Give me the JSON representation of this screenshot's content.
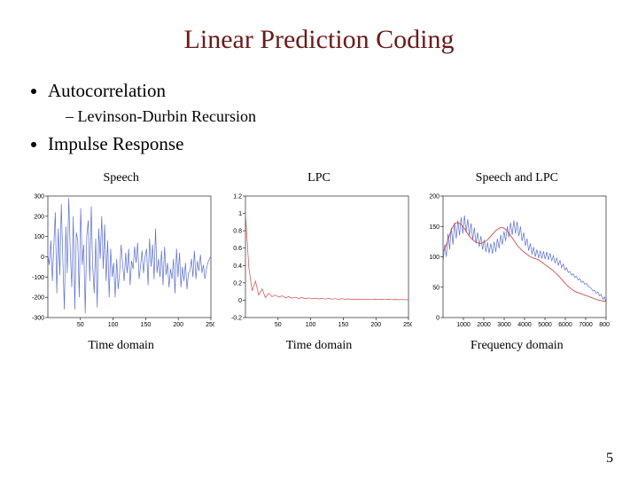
{
  "title": "Linear Prediction Coding",
  "title_color": "#6b1a1a",
  "bullets": {
    "b1": "Autocorrelation",
    "b1_sub1": "Levinson-Durbin Recursion",
    "b2": "Impulse Response"
  },
  "page_number": "5",
  "charts": [
    {
      "top_label": "Speech",
      "bottom_label": "Time domain",
      "type": "line",
      "series": [
        {
          "color": "#5b6fd1",
          "stroke_width": 0.7,
          "y": [
            10,
            -40,
            80,
            -120,
            60,
            220,
            -180,
            140,
            -90,
            260,
            -10,
            -260,
            150,
            -80,
            290,
            30,
            -150,
            200,
            -260,
            120,
            80,
            -200,
            240,
            -40,
            60,
            -280,
            100,
            180,
            -120,
            250,
            -50,
            -180,
            90,
            -250,
            140,
            -10,
            200,
            -60,
            160,
            -120,
            80,
            -200,
            40,
            -100,
            -30,
            -200,
            -10,
            -160,
            -80,
            60,
            -40,
            -120,
            20,
            -80,
            40,
            -140,
            -20,
            -60,
            50,
            -30,
            70,
            -110,
            -40,
            30,
            -80,
            0,
            40,
            -140,
            90,
            -50,
            60,
            -110,
            140,
            -80,
            -10,
            -100,
            30,
            -140,
            50,
            -90,
            -30,
            -150,
            -60,
            -110,
            -10,
            -180,
            40,
            -100,
            20,
            -150,
            -50,
            -120,
            -30,
            -160,
            -80,
            -70,
            -10,
            -100,
            30,
            -110,
            -20,
            -70,
            10,
            -80,
            -40,
            -110,
            -60,
            -30,
            -10,
            0
          ]
        }
      ],
      "x_range": [
        0,
        250
      ],
      "y_range": [
        -300,
        300
      ],
      "y_ticks": [
        -300,
        -200,
        -100,
        0,
        100,
        200,
        300
      ],
      "x_ticks": [
        50,
        100,
        150,
        200,
        250
      ],
      "background": "#ffffff"
    },
    {
      "top_label": "LPC",
      "bottom_label": "Time domain",
      "type": "line",
      "series": [
        {
          "color": "#d24a4a",
          "stroke_width": 0.7,
          "y": [
            1.0,
            0.38,
            0.11,
            0.22,
            0.06,
            0.13,
            0.03,
            0.08,
            0.04,
            0.06,
            0.035,
            0.05,
            0.028,
            0.04,
            0.024,
            0.034,
            0.02,
            0.03,
            0.018,
            0.027,
            0.016,
            0.024,
            0.015,
            0.022,
            0.013,
            0.02,
            0.012,
            0.018,
            0.011,
            0.017,
            0.01,
            0.015,
            0.009,
            0.014,
            0.008,
            0.013,
            0.008,
            0.012,
            0.007,
            0.011,
            0.007,
            0.01,
            0.006,
            0.009,
            0.006,
            0.008,
            0.005,
            0.007,
            0.005,
            0.006
          ]
        }
      ],
      "x_range": [
        0,
        250
      ],
      "y_range": [
        -0.2,
        1.2
      ],
      "y_ticks": [
        -0.2,
        0,
        0.2,
        0.4,
        0.6,
        0.8,
        1.0,
        1.2
      ],
      "x_ticks": [
        50,
        100,
        150,
        200,
        250
      ],
      "background": "#ffffff"
    },
    {
      "top_label": "Speech and LPC",
      "bottom_label": "Frequency domain",
      "type": "line",
      "series": [
        {
          "color": "#5b6fd1",
          "stroke_width": 0.7,
          "y": [
            90,
            120,
            100,
            138,
            112,
            148,
            120,
            156,
            130,
            160,
            135,
            165,
            138,
            168,
            140,
            162,
            134,
            155,
            128,
            148,
            122,
            140,
            116,
            134,
            112,
            128,
            108,
            124,
            106,
            122,
            105,
            125,
            108,
            130,
            114,
            136,
            120,
            142,
            126,
            150,
            132,
            156,
            136,
            160,
            138,
            158,
            134,
            150,
            126,
            140,
            118,
            130,
            110,
            122,
            104,
            116,
            100,
            112,
            98,
            110,
            97,
            109,
            96,
            108,
            95,
            106,
            93,
            102,
            90,
            98,
            86,
            94,
            82,
            88,
            78,
            82,
            74,
            76,
            70,
            72,
            66,
            68,
            62,
            64,
            58,
            60,
            55,
            56,
            52,
            50,
            48,
            44,
            45,
            40,
            42,
            36,
            38,
            30,
            34,
            24
          ]
        },
        {
          "color": "#d24a4a",
          "stroke_width": 0.9,
          "y": [
            108,
            114,
            120,
            128,
            136,
            144,
            150,
            154,
            156,
            156,
            155,
            153,
            150,
            146,
            142,
            138,
            134,
            131,
            128,
            126,
            124,
            123,
            122,
            122,
            123,
            124,
            126,
            128,
            131,
            134,
            137,
            140,
            143,
            145,
            147,
            148,
            148,
            147,
            145,
            142,
            139,
            135,
            131,
            127,
            123,
            119,
            116,
            113,
            110,
            108,
            106,
            104,
            102,
            100,
            99,
            98,
            97,
            96,
            95,
            93,
            91,
            89,
            87,
            85,
            83,
            81,
            79,
            77,
            74,
            72,
            69,
            66,
            63,
            60,
            57,
            54,
            51,
            49,
            47,
            45,
            43,
            42,
            41,
            40,
            39,
            38,
            37,
            36,
            35,
            34,
            33,
            32,
            31,
            30,
            29,
            28,
            28,
            27,
            27,
            26
          ]
        }
      ],
      "x_range": [
        0,
        8000
      ],
      "y_range": [
        0,
        200
      ],
      "y_ticks": [
        0,
        50,
        100,
        150,
        200
      ],
      "x_ticks": [
        1000,
        2000,
        3000,
        4000,
        5000,
        6000,
        7000,
        8000
      ],
      "background": "#ffffff"
    }
  ]
}
